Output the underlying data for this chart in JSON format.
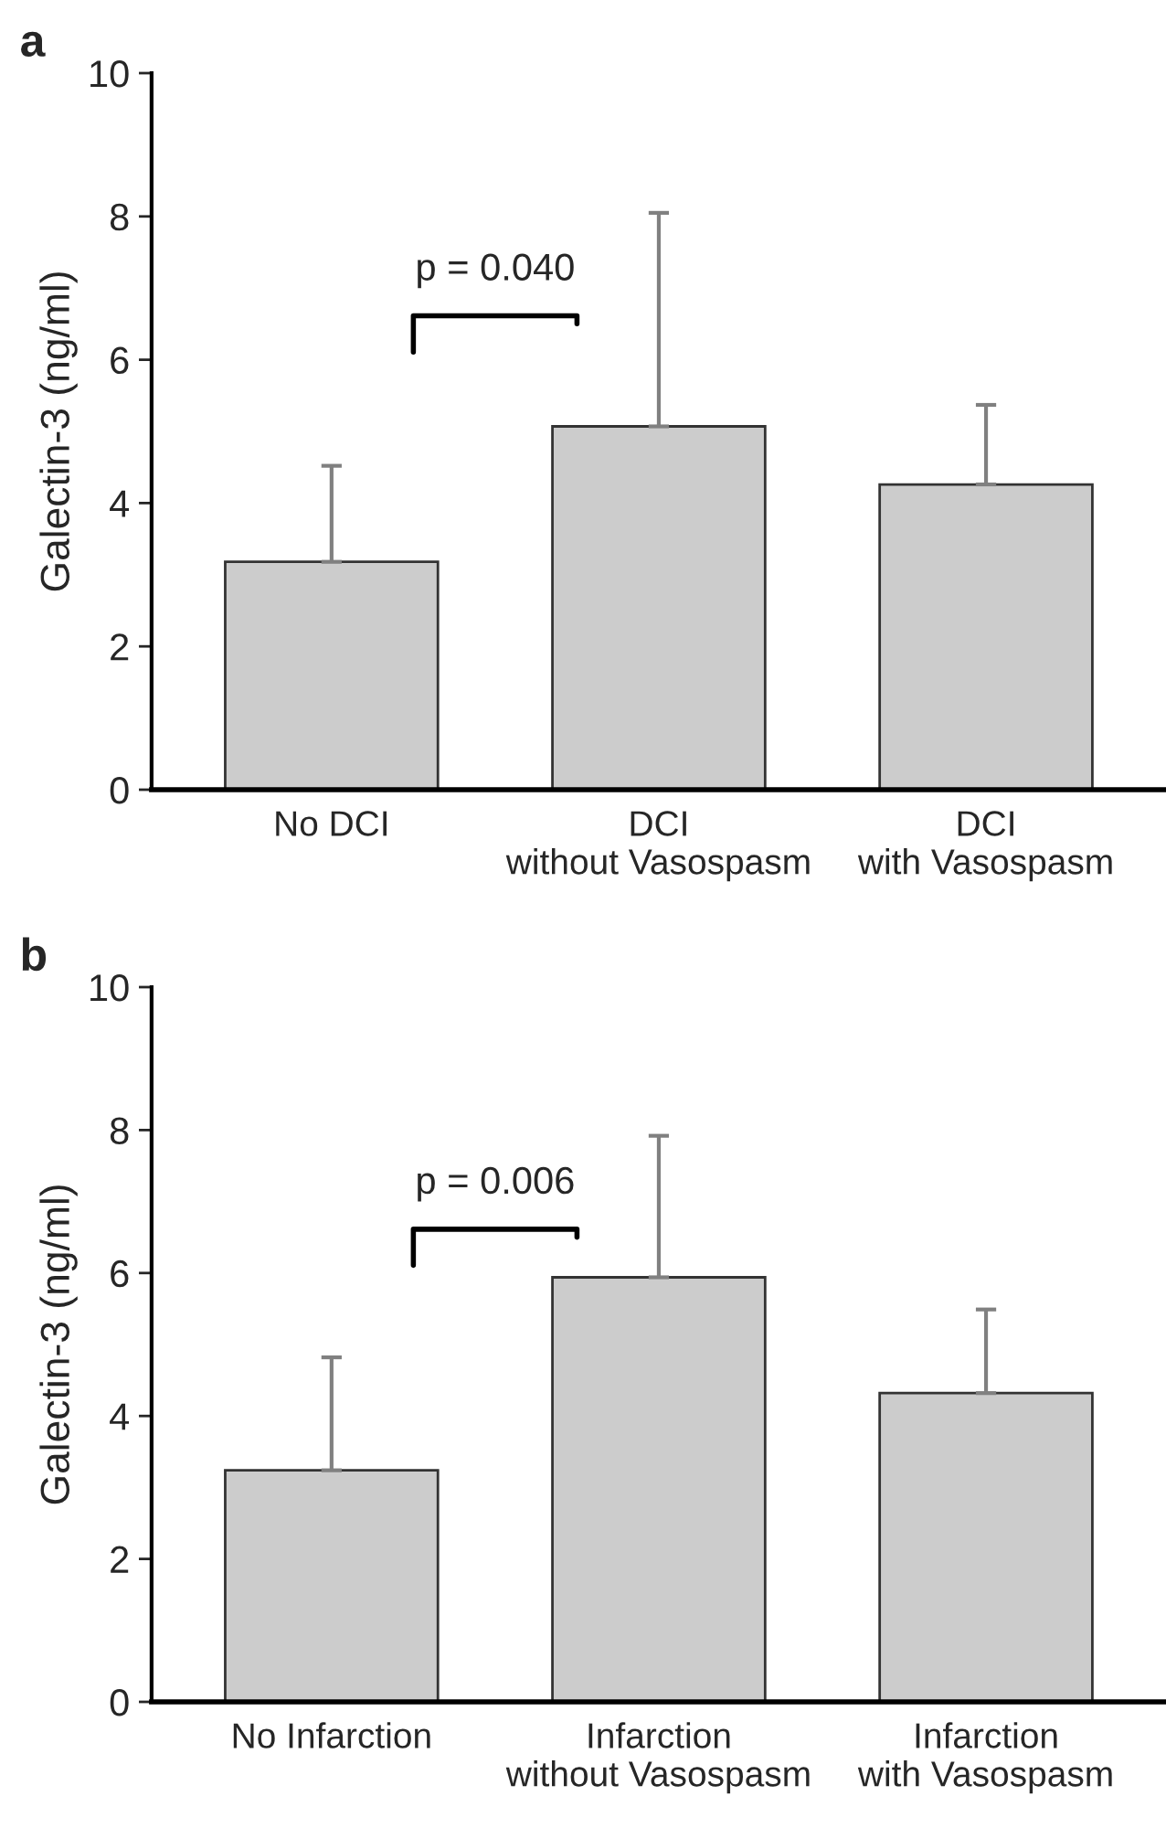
{
  "chart_data": [
    {
      "type": "bar",
      "title": "a",
      "ylabel": "Galectin-3 (ng/ml)",
      "categories": [
        "No DCI",
        "DCI\nwithout Vasospasm",
        "DCI\nwith Vasospasm"
      ],
      "values": [
        3.18,
        5.07,
        4.26
      ],
      "errors": [
        [
          3.18,
          4.52
        ],
        [
          5.07,
          8.05
        ],
        [
          4.26,
          5.37
        ]
      ],
      "color": "#cccccc",
      "ylim": [
        0,
        10
      ],
      "yticks": [
        0,
        2,
        4,
        6,
        8,
        10
      ],
      "grid": false,
      "annotations": [
        "p = 0.040"
      ]
    },
    {
      "type": "bar",
      "title": "b",
      "ylabel": "Galectin-3 (ng/ml)",
      "categories": [
        "No Infarction",
        "Infarction\nwithout Vasospasm",
        "Infarction\nwith Vasospasm"
      ],
      "values": [
        3.24,
        5.94,
        4.32
      ],
      "errors": [
        [
          3.24,
          4.82
        ],
        [
          5.94,
          7.92
        ],
        [
          4.32,
          5.49
        ]
      ],
      "color": "#cccccc",
      "ylim": [
        0,
        10
      ],
      "yticks": [
        0,
        2,
        4,
        6,
        8,
        10
      ],
      "grid": false,
      "annotations": [
        "p = 0.006"
      ]
    }
  ]
}
